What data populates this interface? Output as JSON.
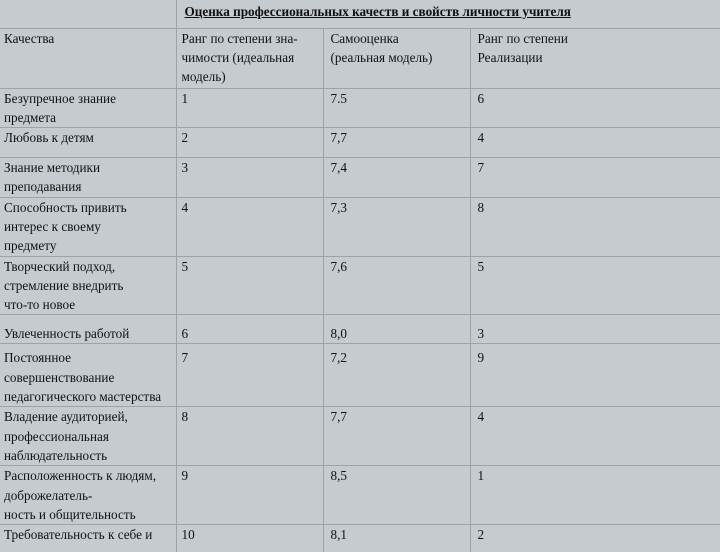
{
  "table": {
    "title": "Оценка профессиональных качеств и свойств личности учителя",
    "headers": [
      "Качества",
      "Ранг по степени зна-\nчимости (идеальная\nмодель)",
      "Самооценка\n(реальная модель)",
      "Ранг по степени\nРеализации"
    ],
    "rows": [
      [
        "Безупречное знание\nпредмета",
        "1",
        "7.5",
        "6"
      ],
      [
        "Любовь к детям",
        "2",
        "7,7",
        "4"
      ],
      [
        "Знание методики\nпреподавания",
        "3",
        "7,4",
        "7"
      ],
      [
        "Способность привить\nинтерес к своему\nпредмету",
        "4",
        "7,3",
        "8"
      ],
      [
        "Творческий подход,\nстремление внедрить\nчто-то новое",
        "5",
        "7,6",
        "5"
      ],
      [
        "Увлеченность работой",
        "6",
        "8,0",
        "3"
      ],
      [
        "Постоянное\nсовершенствование\nпедагогического мастерства",
        "7",
        "7,2",
        "9"
      ],
      [
        "Владение аудиторией,\nпрофессиональная\nнаблюдательность",
        "8",
        "7,7",
        "4"
      ],
      [
        "Расположенность к людям,\nдоброжелатель-\nность и общительность",
        "9",
        "8,5",
        "1"
      ],
      [
        "Требовательность к себе и",
        "10",
        "8,1",
        "2"
      ]
    ]
  }
}
